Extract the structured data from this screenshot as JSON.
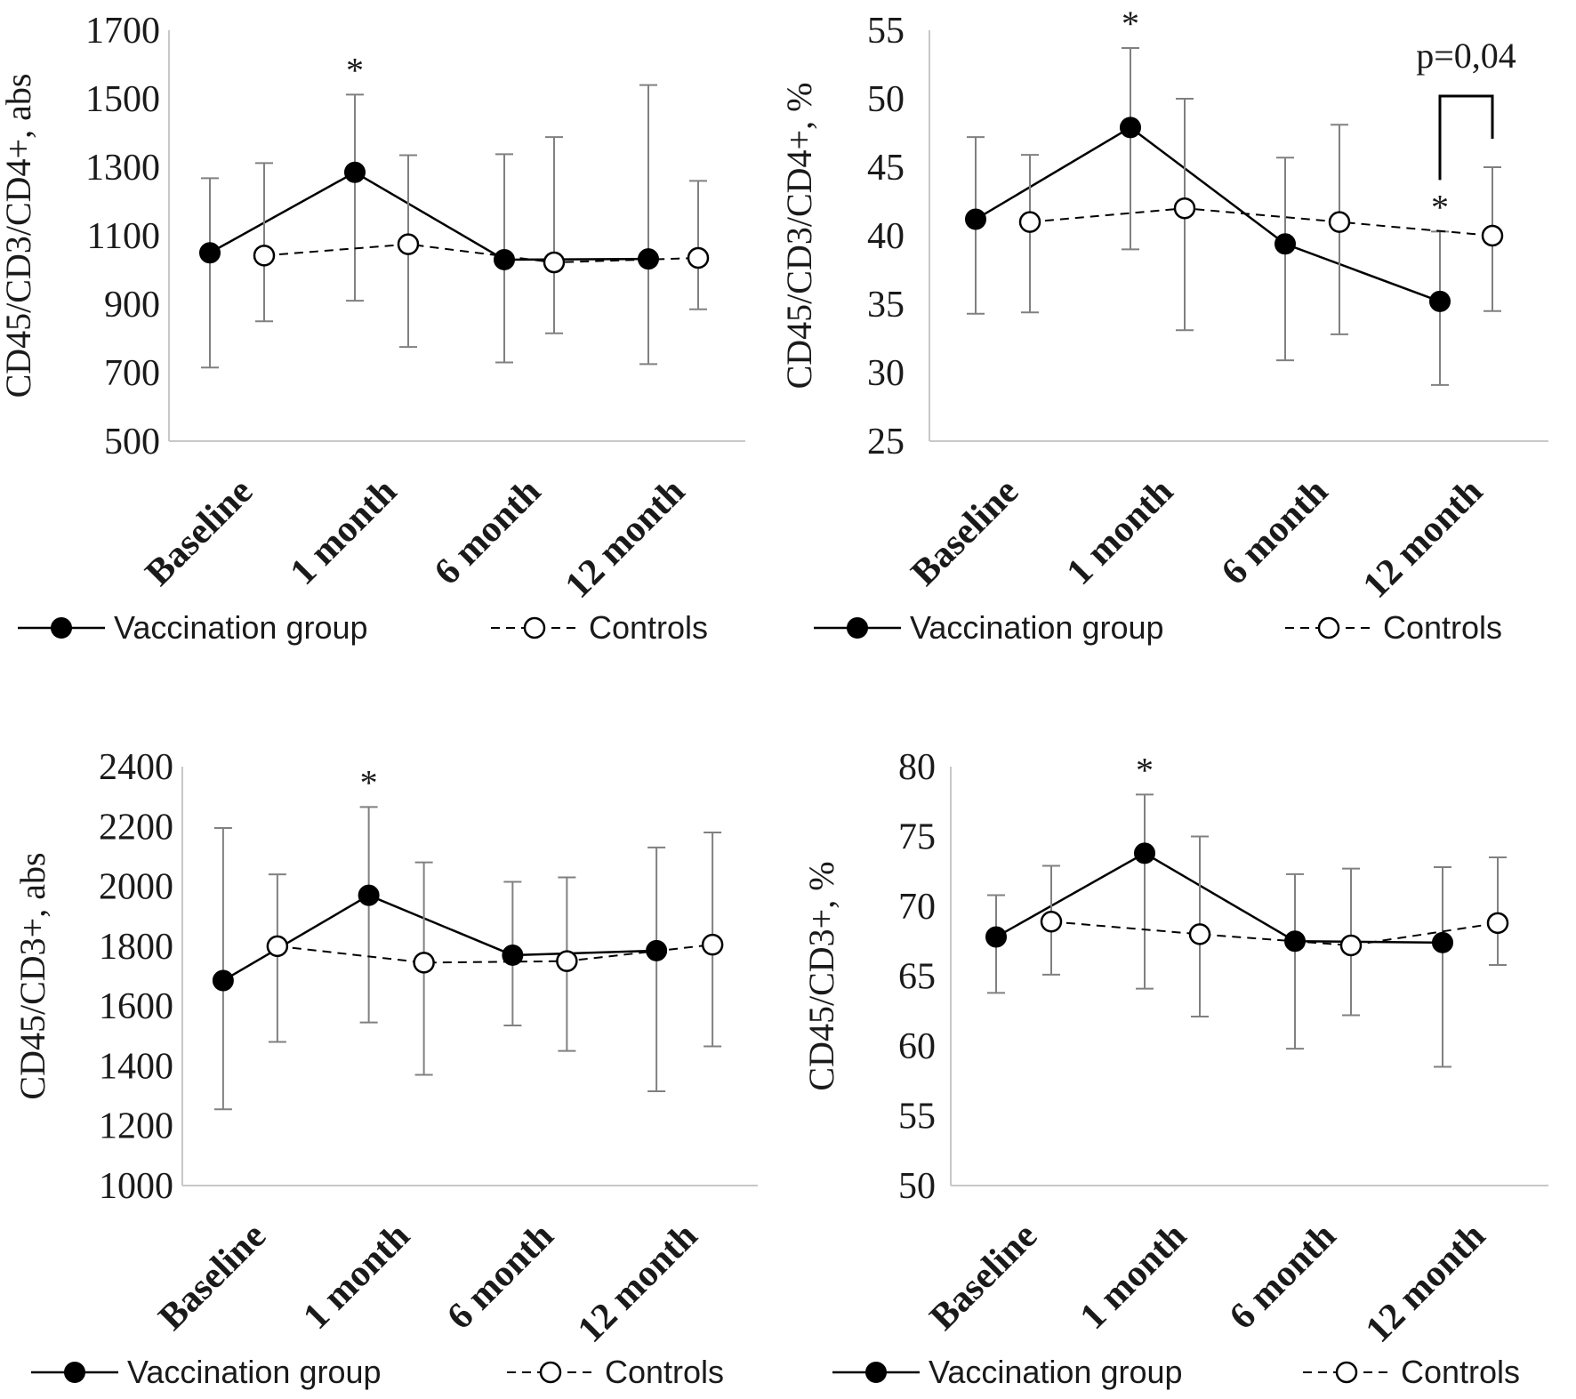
{
  "chart_data": [
    {
      "type": "line",
      "ylabel": "CD45/CD3/CD4+, abs",
      "ylim": [
        500,
        1700
      ],
      "yticks": [
        500,
        700,
        900,
        1100,
        1300,
        1500,
        1700
      ],
      "categories": [
        "Baseline",
        "1 month",
        "6 month",
        "12 month"
      ],
      "series": [
        {
          "name": "Vaccination group",
          "style": "solid-filled",
          "values": [
            1050,
            1285,
            1030,
            1032
          ],
          "err_low": [
            715,
            910,
            730,
            725
          ],
          "err_high": [
            1268,
            1512,
            1338,
            1540
          ]
        },
        {
          "name": "Controls",
          "style": "dashed-open",
          "values": [
            1042,
            1075,
            1022,
            1035
          ],
          "err_low": [
            850,
            775,
            815,
            885
          ],
          "err_high": [
            1312,
            1335,
            1388,
            1260
          ]
        }
      ],
      "annotations": [
        {
          "text": "*",
          "category": "1 month"
        }
      ],
      "legend": [
        "Vaccination group",
        "Controls"
      ]
    },
    {
      "type": "line",
      "ylabel": "CD45/CD3/CD4+, %",
      "ylim": [
        25,
        55
      ],
      "yticks": [
        25,
        30,
        35,
        40,
        45,
        50,
        55
      ],
      "categories": [
        "Baseline",
        "1 month",
        "6 month",
        "12 month"
      ],
      "series": [
        {
          "name": "Vaccination group",
          "style": "solid-filled",
          "values": [
            41.2,
            47.9,
            39.4,
            35.2
          ],
          "err_low": [
            34.3,
            39.0,
            30.9,
            29.1
          ],
          "err_high": [
            47.2,
            53.7,
            45.7,
            40.3
          ]
        },
        {
          "name": "Controls",
          "style": "dashed-open",
          "values": [
            41.0,
            42.0,
            41.0,
            40.0
          ],
          "err_low": [
            34.4,
            33.1,
            32.8,
            34.5
          ],
          "err_high": [
            45.9,
            50.0,
            48.1,
            45.0
          ]
        }
      ],
      "annotations": [
        {
          "text": "*",
          "category": "1 month"
        },
        {
          "text": "*",
          "category": "12 month"
        }
      ],
      "bracket_label": "p=0,04",
      "legend": [
        "Vaccination group",
        "Controls"
      ]
    },
    {
      "type": "line",
      "ylabel": "CD45/CD3+, abs",
      "ylim": [
        1000,
        2400
      ],
      "yticks": [
        1000,
        1200,
        1400,
        1600,
        1800,
        2000,
        2200,
        2400
      ],
      "categories": [
        "Baseline",
        "1 month",
        "6 month",
        "12 month"
      ],
      "series": [
        {
          "name": "Vaccination group",
          "style": "solid-filled",
          "values": [
            1685,
            1970,
            1770,
            1785
          ],
          "err_low": [
            1255,
            1545,
            1535,
            1315
          ],
          "err_high": [
            2195,
            2265,
            2015,
            2130
          ]
        },
        {
          "name": "Controls",
          "style": "dashed-open",
          "values": [
            1800,
            1745,
            1750,
            1805
          ],
          "err_low": [
            1480,
            1370,
            1450,
            1465
          ],
          "err_high": [
            2040,
            2080,
            2030,
            2180
          ]
        }
      ],
      "annotations": [
        {
          "text": "*",
          "category": "1 month"
        }
      ],
      "legend": [
        "Vaccination group",
        "Controls"
      ]
    },
    {
      "type": "line",
      "ylabel": "CD45/CD3+, %",
      "ylim": [
        50,
        80
      ],
      "yticks": [
        50,
        55,
        60,
        65,
        70,
        75,
        80
      ],
      "categories": [
        "Baseline",
        "1 month",
        "6 month",
        "12 month"
      ],
      "series": [
        {
          "name": "Vaccination group",
          "style": "solid-filled",
          "values": [
            67.8,
            73.8,
            67.5,
            67.4
          ],
          "err_low": [
            63.8,
            64.1,
            59.8,
            58.5
          ],
          "err_high": [
            70.8,
            78.0,
            72.3,
            72.8
          ]
        },
        {
          "name": "Controls",
          "style": "dashed-open",
          "values": [
            68.9,
            68.0,
            67.2,
            68.8
          ],
          "err_low": [
            65.1,
            62.1,
            62.2,
            65.8
          ],
          "err_high": [
            72.9,
            75.0,
            72.7,
            73.5
          ]
        }
      ],
      "annotations": [
        {
          "text": "*",
          "category": "1 month"
        }
      ],
      "legend": [
        "Vaccination group",
        "Controls"
      ]
    }
  ]
}
